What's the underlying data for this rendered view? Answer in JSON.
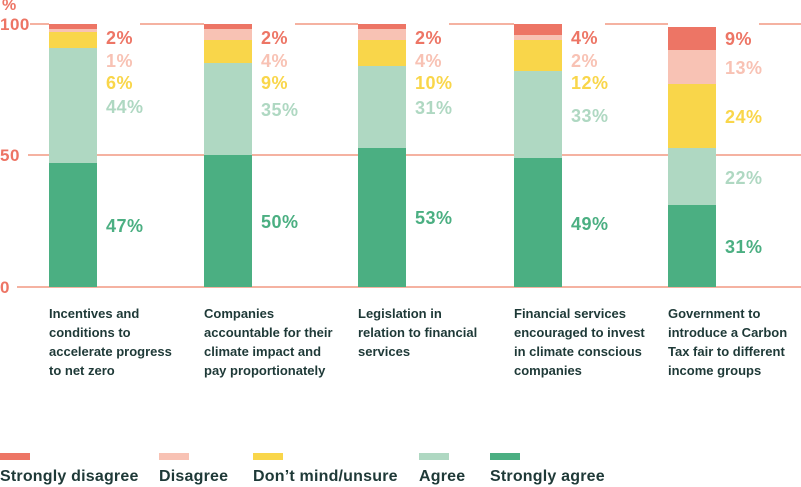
{
  "chart_data": {
    "type": "bar",
    "stacked": true,
    "orientation": "vertical",
    "title": "",
    "xlabel": "",
    "ylabel": "%",
    "unit": "%",
    "ylim": [
      0,
      100
    ],
    "grid": true,
    "legend_position": "bottom",
    "categories": [
      "Incentives and conditions to accelerate progress to net zero",
      "Companies accountable for their climate impact and pay proportionately",
      "Legislation in relation to financial services",
      "Financial services encouraged to invest in climate conscious companies",
      "Government to introduce a Carbon Tax fair to different income groups"
    ],
    "category_lines": [
      [
        "Incentives and",
        "conditions to",
        "accelerate progress",
        "to net zero"
      ],
      [
        "Companies",
        "accountable for their",
        "climate impact and",
        "pay proportionately"
      ],
      [
        "Legislation in",
        "relation to financial",
        "services"
      ],
      [
        "Financial services",
        "encouraged to invest",
        "in climate conscious",
        "companies"
      ],
      [
        "Government to",
        "introduce a Carbon",
        "Tax fair to different",
        "income groups"
      ]
    ],
    "series": [
      {
        "name": "Strongly disagree",
        "color": "#ED7565",
        "values": [
          2,
          2,
          2,
          4,
          9
        ]
      },
      {
        "name": "Disagree",
        "color": "#F8C2B4",
        "values": [
          1,
          4,
          4,
          2,
          13
        ]
      },
      {
        "name": "Don’t mind/unsure",
        "color": "#F9D64A",
        "values": [
          6,
          9,
          10,
          12,
          24
        ]
      },
      {
        "name": "Agree",
        "color": "#AFD8C2",
        "values": [
          44,
          35,
          31,
          33,
          22
        ]
      },
      {
        "name": "Strongly agree",
        "color": "#4BAF82",
        "values": [
          47,
          50,
          53,
          49,
          31
        ]
      }
    ]
  },
  "axis": {
    "unit_label": "%",
    "ticks": [
      {
        "label": "100",
        "value": 100
      },
      {
        "label": "50",
        "value": 50
      },
      {
        "label": "0",
        "value": 0
      }
    ]
  },
  "legend": {
    "items": [
      {
        "label": "Strongly disagree",
        "color": "#ED7565"
      },
      {
        "label": "Disagree",
        "color": "#F8C2B4"
      },
      {
        "label": "Don’t mind/unsure",
        "color": "#F9D64A"
      },
      {
        "label": "Agree",
        "color": "#AFD8C2"
      },
      {
        "label": "Strongly agree",
        "color": "#4BAF82"
      }
    ]
  },
  "colors": {
    "axis_text": "#ED7565",
    "gridline": "#F5B2A1",
    "category_text": "#1E3937",
    "background": "#FFFFFF"
  }
}
